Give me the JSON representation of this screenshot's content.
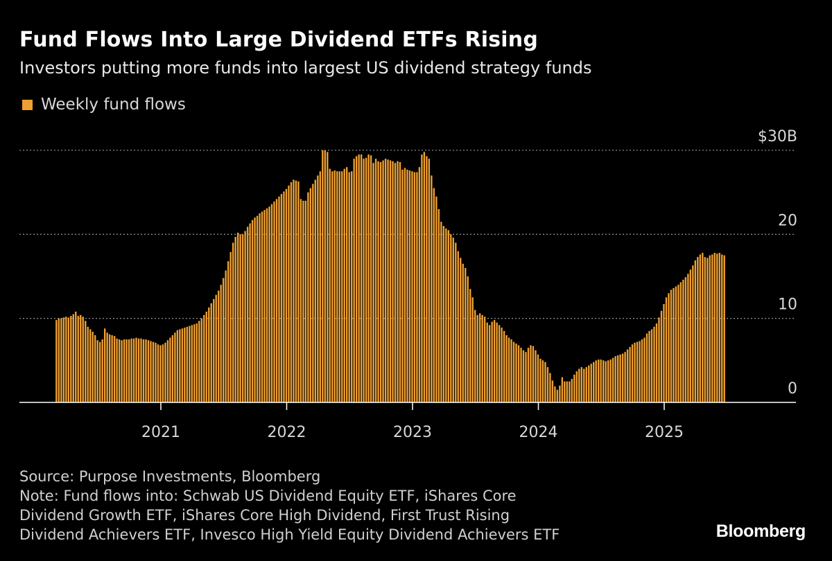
{
  "header": {
    "title": "Fund Flows Into Large Dividend ETFs Rising",
    "subtitle": "Investors putting more funds into largest US dividend strategy funds"
  },
  "legend": {
    "label": "Weekly fund flows",
    "color": "#f0a030"
  },
  "footer": {
    "source": "Source: Purpose Investments, Bloomberg",
    "note_lines": [
      "Note: Fund flows into: Schwab US Dividend Equity ETF, iShares Core",
      "Dividend Growth ETF, iShares Core High Dividend, First Trust Rising",
      "Dividend Achievers ETF, Invesco High Yield Equity Dividend Achievers ETF"
    ]
  },
  "brand": "Bloomberg",
  "colors": {
    "bar": "#f0a030",
    "background": "#000000",
    "gridline": "#8a8a8a",
    "axis": "#ffffff"
  },
  "chart_data": {
    "type": "bar",
    "title": "Fund Flows Into Large Dividend ETFs Rising",
    "series_name": "Weekly fund flows",
    "unit": "$B",
    "ylim": [
      0,
      30
    ],
    "yticks": [
      0,
      10,
      20,
      30
    ],
    "ytick_labels": [
      "0",
      "10",
      "20",
      "$30B"
    ],
    "xlim_years": [
      2020.04,
      2025.99
    ],
    "xticks": [
      2021,
      2022,
      2023,
      2024,
      2025
    ],
    "xtick_labels": [
      "2021",
      "2022",
      "2023",
      "2024",
      "2025"
    ],
    "grid": true,
    "legend_position": "top-left",
    "start_year": 2020.17,
    "week_step_years": 0.019231,
    "values": [
      9.8,
      10.0,
      10.0,
      10.1,
      10.2,
      10.1,
      10.3,
      10.5,
      10.8,
      10.3,
      10.4,
      10.2,
      9.7,
      9.0,
      8.7,
      8.4,
      8.0,
      7.4,
      7.2,
      7.5,
      8.8,
      8.3,
      8.1,
      8.0,
      7.9,
      7.6,
      7.5,
      7.4,
      7.5,
      7.5,
      7.5,
      7.6,
      7.6,
      7.7,
      7.6,
      7.6,
      7.5,
      7.5,
      7.4,
      7.3,
      7.2,
      7.1,
      6.9,
      6.8,
      6.9,
      7.1,
      7.4,
      7.7,
      8.0,
      8.3,
      8.6,
      8.7,
      8.8,
      8.9,
      9.0,
      9.1,
      9.2,
      9.3,
      9.4,
      9.7,
      10.0,
      10.4,
      10.8,
      11.3,
      11.8,
      12.3,
      12.8,
      13.3,
      14.0,
      14.8,
      15.7,
      16.8,
      17.9,
      19.0,
      19.7,
      20.2,
      20.0,
      20.0,
      20.4,
      20.9,
      21.3,
      21.7,
      22.0,
      22.2,
      22.5,
      22.7,
      22.9,
      23.1,
      23.3,
      23.6,
      23.9,
      24.2,
      24.5,
      24.8,
      25.1,
      25.4,
      25.8,
      26.2,
      26.5,
      26.4,
      26.3,
      24.2,
      24.0,
      24.0,
      25.0,
      25.5,
      26.0,
      26.5,
      27.0,
      27.5,
      30.0,
      30.0,
      29.8,
      27.8,
      27.5,
      27.6,
      27.5,
      27.5,
      27.5,
      27.8,
      28.0,
      27.4,
      27.5,
      29.0,
      29.3,
      29.5,
      29.5,
      29.0,
      29.1,
      29.5,
      29.4,
      28.5,
      29.0,
      28.7,
      28.6,
      28.8,
      29.0,
      28.9,
      28.8,
      28.7,
      28.5,
      28.7,
      28.6,
      27.7,
      27.9,
      27.7,
      27.6,
      27.5,
      27.4,
      27.4,
      28.0,
      29.5,
      29.8,
      29.3,
      29.0,
      27.0,
      25.5,
      24.5,
      23.0,
      21.5,
      21.0,
      20.7,
      20.5,
      20.0,
      19.6,
      19.0,
      18.0,
      17.2,
      16.5,
      16.0,
      15.0,
      13.5,
      12.5,
      11.0,
      10.4,
      10.6,
      10.4,
      10.2,
      9.5,
      9.2,
      9.6,
      9.8,
      9.5,
      9.2,
      8.9,
      8.5,
      8.0,
      7.7,
      7.5,
      7.2,
      7.0,
      6.8,
      6.5,
      6.2,
      6.0,
      6.5,
      6.8,
      6.7,
      6.2,
      5.7,
      5.2,
      5.0,
      4.8,
      4.2,
      3.5,
      2.6,
      1.9,
      1.5,
      2.0,
      3.0,
      2.5,
      2.5,
      2.5,
      2.8,
      3.3,
      3.7,
      4.0,
      4.2,
      4.0,
      4.2,
      4.4,
      4.6,
      4.8,
      5.0,
      5.1,
      5.1,
      5.0,
      4.9,
      5.0,
      5.1,
      5.3,
      5.5,
      5.6,
      5.7,
      5.8,
      6.0,
      6.3,
      6.6,
      6.9,
      7.1,
      7.2,
      7.3,
      7.5,
      7.7,
      8.2,
      8.5,
      8.7,
      9.0,
      9.4,
      10.1,
      10.9,
      11.7,
      12.5,
      13.0,
      13.4,
      13.6,
      13.8,
      14.0,
      14.3,
      14.6,
      14.9,
      15.3,
      15.8,
      16.3,
      16.9,
      17.3,
      17.6,
      17.8,
      17.3,
      17.2,
      17.5,
      17.6,
      17.8,
      17.7,
      17.8,
      17.6,
      17.5
    ]
  }
}
